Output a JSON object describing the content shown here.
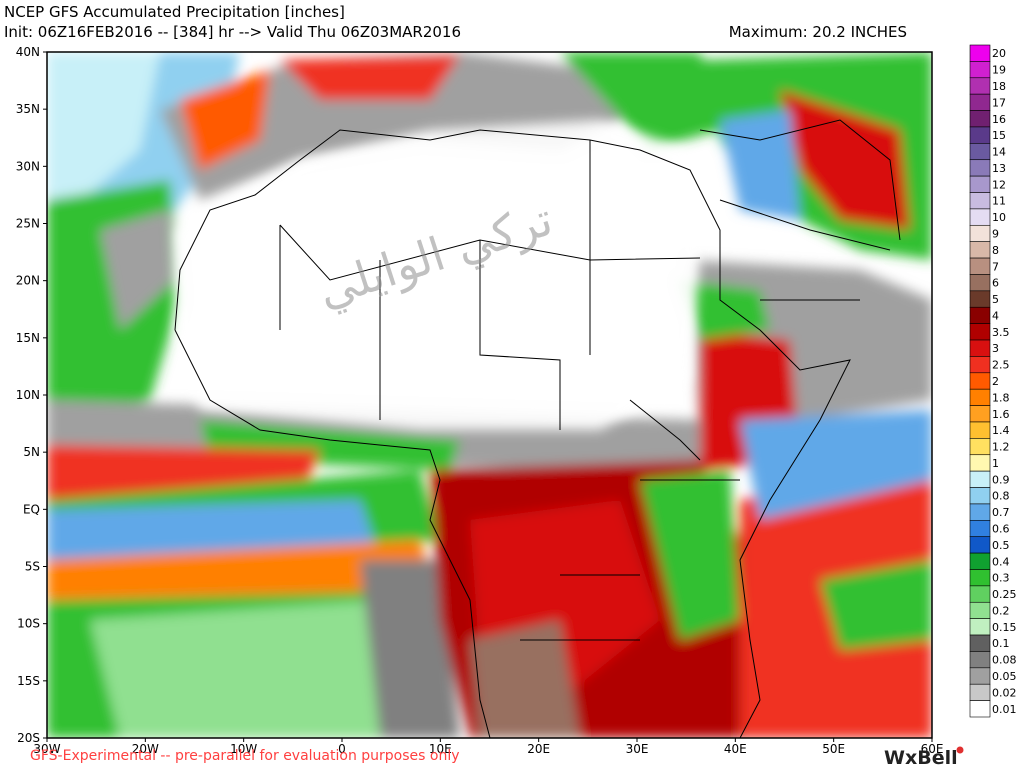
{
  "header": {
    "title": "NCEP GFS Accumulated Precipitation [inches]",
    "init_line": "Init: 06Z16FEB2016 -- [384] hr --> Valid Thu 06Z03MAR2016",
    "maximum": "Maximum: 20.2 INCHES"
  },
  "map": {
    "lat_labels": [
      "40N",
      "35N",
      "30N",
      "25N",
      "20N",
      "15N",
      "10N",
      "5N",
      "EQ",
      "5S",
      "10S",
      "15S",
      "20S"
    ],
    "lon_labels": [
      "30W",
      "20W",
      "10W",
      "0",
      "10E",
      "20E",
      "30E",
      "40E",
      "50E",
      "60E"
    ],
    "watermark": "تركي الوايلي"
  },
  "colorbar": [
    {
      "label": "20",
      "color": "#ee00ee"
    },
    {
      "label": "19",
      "color": "#d020d0"
    },
    {
      "label": "18",
      "color": "#b030b0"
    },
    {
      "label": "17",
      "color": "#902890"
    },
    {
      "label": "16",
      "color": "#702070"
    },
    {
      "label": "15",
      "color": "#5a3a8a"
    },
    {
      "label": "14",
      "color": "#6a5aa0"
    },
    {
      "label": "13",
      "color": "#8a7ab8"
    },
    {
      "label": "12",
      "color": "#a898cc"
    },
    {
      "label": "11",
      "color": "#c8bce0"
    },
    {
      "label": "10",
      "color": "#e4dcf2"
    },
    {
      "label": "9",
      "color": "#f2e2da"
    },
    {
      "label": "8",
      "color": "#d8b8a8"
    },
    {
      "label": "7",
      "color": "#b89080"
    },
    {
      "label": "6",
      "color": "#987060"
    },
    {
      "label": "5",
      "color": "#6a3a2a"
    },
    {
      "label": "4",
      "color": "#8a0000"
    },
    {
      "label": "3.5",
      "color": "#b00000"
    },
    {
      "label": "3",
      "color": "#d81010"
    },
    {
      "label": "2.5",
      "color": "#f03020"
    },
    {
      "label": "2",
      "color": "#ff5a00"
    },
    {
      "label": "1.8",
      "color": "#ff8000"
    },
    {
      "label": "1.6",
      "color": "#ffa020"
    },
    {
      "label": "1.4",
      "color": "#ffc030"
    },
    {
      "label": "1.2",
      "color": "#ffe060"
    },
    {
      "label": "1",
      "color": "#fff8b0"
    },
    {
      "label": "0.9",
      "color": "#c8f0f8"
    },
    {
      "label": "0.8",
      "color": "#90d0f0"
    },
    {
      "label": "0.7",
      "color": "#60a8e8"
    },
    {
      "label": "0.6",
      "color": "#3080e0"
    },
    {
      "label": "0.5",
      "color": "#1058c8"
    },
    {
      "label": "0.4",
      "color": "#10a030"
    },
    {
      "label": "0.3",
      "color": "#30c030"
    },
    {
      "label": "0.25",
      "color": "#60d060"
    },
    {
      "label": "0.2",
      "color": "#90e090"
    },
    {
      "label": "0.15",
      "color": "#c0f0c0"
    },
    {
      "label": "0.1",
      "color": "#606060"
    },
    {
      "label": "0.08",
      "color": "#808080"
    },
    {
      "label": "0.05",
      "color": "#a0a0a0"
    },
    {
      "label": "0.02",
      "color": "#c8c8c8"
    },
    {
      "label": "0.01",
      "color": "#ffffff"
    }
  ],
  "footer": {
    "note": "GFS-Experimental -- pre-parallel for evaluation purposes only",
    "logo": "WxBell"
  }
}
